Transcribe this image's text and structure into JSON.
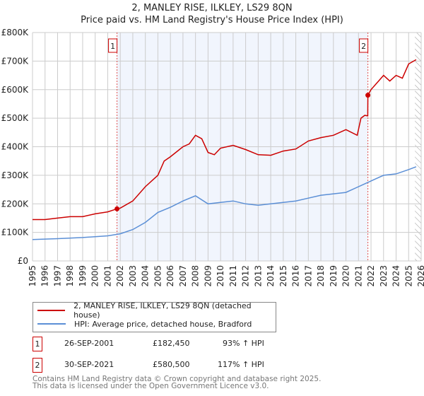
{
  "title_line1": "2, MANLEY RISE, ILKLEY, LS29 8QN",
  "title_line2": "Price paid vs. HM Land Registry's House Price Index (HPI)",
  "chart_data": {
    "type": "line",
    "title": "2, MANLEY RISE, ILKLEY, LS29 8QN — Price paid vs. HM Land Registry's House Price Index (HPI)",
    "xlim": [
      1995,
      2026
    ],
    "ylim": [
      0,
      800000
    ],
    "x_ticks": [
      "1995",
      "1996",
      "1997",
      "1998",
      "1999",
      "2000",
      "2001",
      "2002",
      "2003",
      "2004",
      "2005",
      "2006",
      "2007",
      "2008",
      "2009",
      "2010",
      "2011",
      "2012",
      "2013",
      "2014",
      "2015",
      "2016",
      "2017",
      "2018",
      "2019",
      "2020",
      "2021",
      "2022",
      "2023",
      "2024",
      "2025",
      "2026"
    ],
    "y_ticks": [
      {
        "v": 0,
        "label": "£0"
      },
      {
        "v": 100000,
        "label": "£100K"
      },
      {
        "v": 200000,
        "label": "£200K"
      },
      {
        "v": 300000,
        "label": "£300K"
      },
      {
        "v": 400000,
        "label": "£400K"
      },
      {
        "v": 500000,
        "label": "£500K"
      },
      {
        "v": 600000,
        "label": "£600K"
      },
      {
        "v": 700000,
        "label": "£700K"
      },
      {
        "v": 800000,
        "label": "£800K"
      }
    ],
    "grid": true,
    "shaded_range": [
      2001.74,
      2021.75
    ],
    "forecast_hatch_from": 2025.5,
    "series": [
      {
        "name": "2, MANLEY RISE, ILKLEY, LS29 8QN (detached house)",
        "color": "#cc0000",
        "x": [
          1995,
          1996,
          1997,
          1998,
          1999,
          2000,
          2001,
          2001.74,
          2002,
          2003,
          2004,
          2005,
          2005.5,
          2006,
          2007,
          2007.5,
          2008,
          2008.5,
          2009,
          2009.5,
          2010,
          2011,
          2012,
          2013,
          2014,
          2015,
          2016,
          2017,
          2018,
          2019,
          2020,
          2020.9,
          2021.2,
          2021.5,
          2021.74,
          2021.75,
          2022,
          2023,
          2023.5,
          2024,
          2024.5,
          2025,
          2025.6
        ],
        "y": [
          145000,
          145000,
          150000,
          155000,
          155000,
          165000,
          172000,
          182450,
          185000,
          210000,
          260000,
          300000,
          350000,
          365000,
          400000,
          410000,
          440000,
          428000,
          380000,
          372000,
          395000,
          405000,
          390000,
          372000,
          370000,
          385000,
          392000,
          420000,
          432000,
          440000,
          460000,
          440000,
          500000,
          510000,
          508000,
          580500,
          600000,
          650000,
          630000,
          650000,
          640000,
          690000,
          705000
        ]
      },
      {
        "name": "HPI: Average price, detached house, Bradford",
        "color": "#5b8fd6",
        "x": [
          1995,
          1997,
          1999,
          2001,
          2002,
          2003,
          2004,
          2005,
          2006,
          2007,
          2008,
          2009,
          2010,
          2011,
          2012,
          2013,
          2014,
          2015,
          2016,
          2017,
          2018,
          2019,
          2020,
          2021,
          2022,
          2023,
          2024,
          2025,
          2025.6
        ],
        "y": [
          75000,
          78000,
          82000,
          88000,
          95000,
          110000,
          135000,
          170000,
          188000,
          210000,
          228000,
          200000,
          205000,
          210000,
          200000,
          195000,
          200000,
          205000,
          210000,
          220000,
          230000,
          235000,
          240000,
          260000,
          280000,
          300000,
          305000,
          320000,
          330000
        ]
      }
    ],
    "sales": [
      {
        "label": "1",
        "x": 2001.74,
        "y": 182450
      },
      {
        "label": "2",
        "x": 2021.75,
        "y": 580500
      }
    ]
  },
  "legend": {
    "red": "2, MANLEY RISE, ILKLEY, LS29 8QN (detached house)",
    "blue": "HPI: Average price, detached house, Bradford"
  },
  "sales_table": [
    {
      "num": "1",
      "date": "26-SEP-2001",
      "price": "£182,450",
      "hpi": "93% ↑ HPI"
    },
    {
      "num": "2",
      "date": "30-SEP-2021",
      "price": "£580,500",
      "hpi": "117% ↑ HPI"
    }
  ],
  "footer_line1": "Contains HM Land Registry data © Crown copyright and database right 2025.",
  "footer_line2": "This data is licensed under the Open Government Licence v3.0."
}
